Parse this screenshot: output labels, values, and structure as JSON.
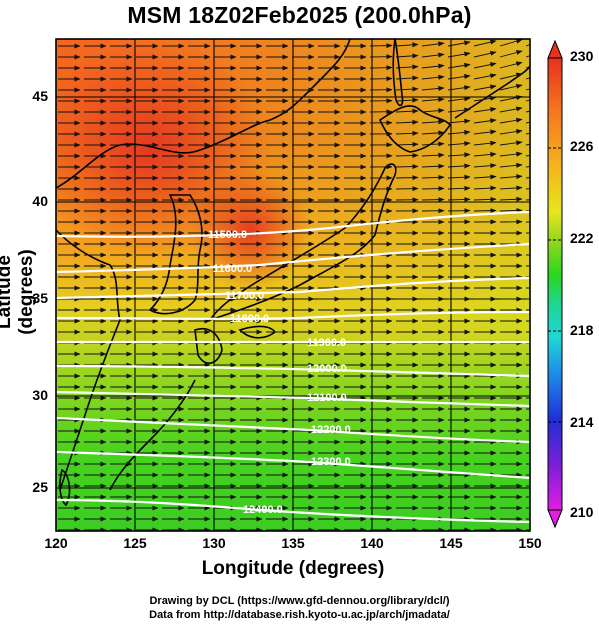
{
  "title": "MSM 18Z02Feb2025 (200.0hPa)",
  "x_axis": {
    "label": "Longitude (degrees)",
    "ticks": [
      "120",
      "125",
      "130",
      "135",
      "140",
      "145",
      "150"
    ]
  },
  "y_axis": {
    "label": "Latitude  (degrees)",
    "ticks": [
      "45",
      "40",
      "35",
      "30",
      "25"
    ]
  },
  "colorbar": {
    "ticks": [
      "230",
      "226",
      "222",
      "218",
      "214",
      "210"
    ],
    "range": [
      210,
      230
    ],
    "colors": [
      "#d61fd6",
      "#7a1fd6",
      "#1f2fd6",
      "#1f8ae6",
      "#1fd6d6",
      "#1fd69a",
      "#2bd61f",
      "#9ad61f",
      "#e6e61f",
      "#f5b41f",
      "#f5781f",
      "#e6321f"
    ]
  },
  "contour_labels": [
    "11500.0",
    "11600.0",
    "11700.0",
    "11800.0",
    "11900.0",
    "12000.0",
    "12100.0",
    "12200.0",
    "12300.0",
    "12400.0"
  ],
  "credits": {
    "line1": "Drawing by DCL (https://www.gfd-dennou.org/library/dcl/)",
    "line2": "Data from http://database.rish.kyoto-u.ac.jp/arch/jmadata/"
  },
  "map_extent": {
    "lon": [
      120,
      150
    ],
    "lat": [
      22.4,
      47.6
    ]
  }
}
